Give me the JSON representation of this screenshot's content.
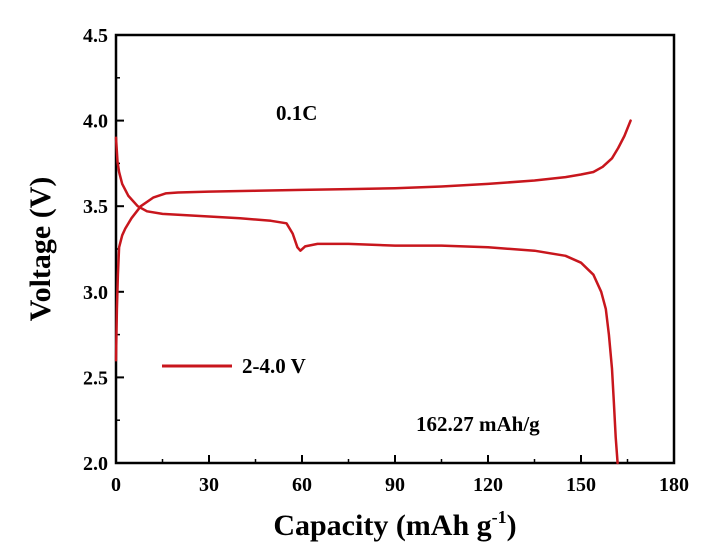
{
  "chart_data": {
    "type": "line",
    "xlabel": "Capacity (mAh g",
    "xlabel_sup": "-1",
    "xlabel_close": ")",
    "ylabel": "Voltage (V)",
    "xlim": [
      0,
      180
    ],
    "ylim": [
      2.0,
      4.5
    ],
    "x_ticks": [
      "0",
      "30",
      "60",
      "90",
      "120",
      "150",
      "180"
    ],
    "y_ticks": [
      "2.0",
      "2.5",
      "3.0",
      "3.5",
      "4.0",
      "4.5"
    ],
    "x_tick_values": [
      0,
      30,
      60,
      90,
      120,
      150,
      180
    ],
    "y_tick_values": [
      2.0,
      2.5,
      3.0,
      3.5,
      4.0,
      4.5
    ],
    "grid": false,
    "color": "#c8161d",
    "legend": {
      "label": "2-4.0 V",
      "placement": "left"
    },
    "annotations": {
      "rate": "0.1C",
      "capacity": "162.27 mAh/g"
    },
    "series": [
      {
        "name": "2-4.0 V",
        "segment": "charge",
        "x": [
          0,
          0.3,
          0.6,
          1,
          2,
          3,
          5,
          8,
          12,
          16,
          20,
          30,
          45,
          60,
          75,
          90,
          105,
          120,
          135,
          145,
          150,
          154,
          157,
          160,
          162,
          164,
          166
        ],
        "y": [
          2.6,
          2.9,
          3.1,
          3.26,
          3.33,
          3.37,
          3.43,
          3.5,
          3.55,
          3.575,
          3.58,
          3.585,
          3.59,
          3.595,
          3.6,
          3.605,
          3.615,
          3.63,
          3.65,
          3.67,
          3.685,
          3.7,
          3.73,
          3.78,
          3.84,
          3.91,
          4.0
        ]
      },
      {
        "name": "2-4.0 V",
        "segment": "discharge",
        "x": [
          0,
          0.5,
          1,
          2,
          4,
          7,
          10,
          15,
          20,
          30,
          40,
          50,
          55,
          57,
          58.5,
          59.5,
          61,
          65,
          75,
          90,
          105,
          120,
          135,
          145,
          150,
          154,
          156.5,
          158,
          159,
          160,
          160.6,
          161.2,
          161.8
        ],
        "y": [
          3.9,
          3.76,
          3.7,
          3.63,
          3.56,
          3.5,
          3.47,
          3.455,
          3.45,
          3.44,
          3.43,
          3.415,
          3.4,
          3.34,
          3.26,
          3.24,
          3.265,
          3.28,
          3.28,
          3.27,
          3.27,
          3.26,
          3.24,
          3.21,
          3.17,
          3.1,
          3.0,
          2.9,
          2.75,
          2.55,
          2.35,
          2.15,
          2.0
        ]
      }
    ]
  }
}
